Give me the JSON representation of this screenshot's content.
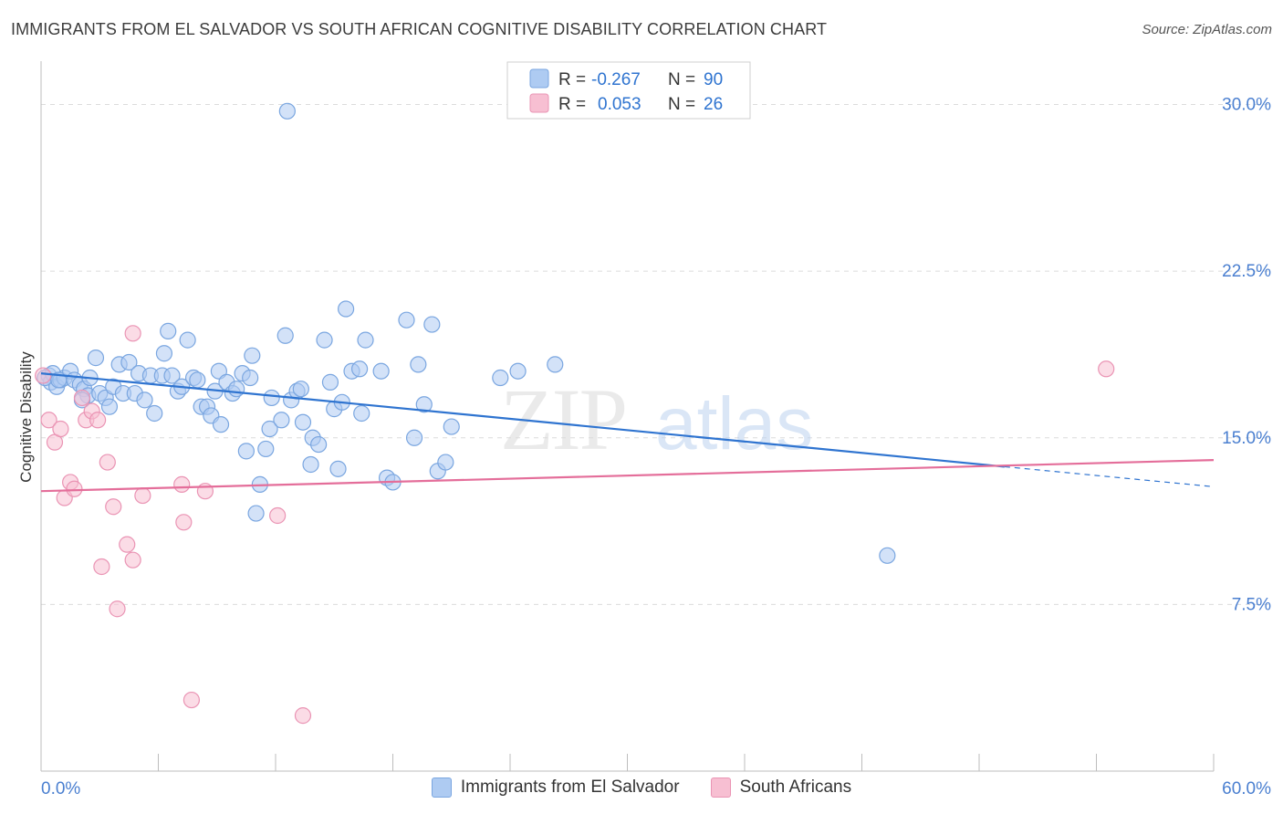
{
  "title": "IMMIGRANTS FROM EL SALVADOR VS SOUTH AFRICAN COGNITIVE DISABILITY CORRELATION CHART",
  "source": "Source: ZipAtlas.com",
  "watermark": {
    "part1": "ZIP",
    "part2": "atlas"
  },
  "colors": {
    "blue_fill": "#aecbf2",
    "blue_stroke": "#7aa6e0",
    "blue_line": "#2f74d0",
    "pink_fill": "#f7bfd2",
    "pink_stroke": "#ea94b4",
    "pink_line": "#e46e9a",
    "tick_label": "#4a7fd0",
    "grid": "#dcdcdc"
  },
  "chart_data": {
    "type": "scatter",
    "xlabel": "",
    "ylabel": "Cognitive Disability",
    "xlim": [
      0,
      60
    ],
    "ylim": [
      0,
      31.5
    ],
    "x_tick_labels": [
      "0.0%",
      "60.0%"
    ],
    "y_ticks": [
      7.5,
      15.0,
      22.5,
      30.0
    ],
    "y_tick_labels": [
      "7.5%",
      "15.0%",
      "22.5%",
      "30.0%"
    ],
    "grid": "horizontal dashed",
    "legend_position": "top-center",
    "stats_legend": [
      {
        "r_label": "R =",
        "r_value": "-0.267",
        "n_label": "N =",
        "n_value": "90"
      },
      {
        "r_label": "R =",
        "r_value": "0.053",
        "n_label": "N =",
        "n_value": "26"
      }
    ],
    "series": [
      {
        "name": "Immigrants from El Salvador",
        "color": "#aecbf2",
        "trend": {
          "x0": 0,
          "y0": 17.9,
          "x1": 49.3,
          "y1": 13.7,
          "dash_to_x": 60,
          "dash_to_y": 12.8
        },
        "points": [
          [
            0.4,
            17.8
          ],
          [
            0.5,
            17.5
          ],
          [
            0.6,
            17.9
          ],
          [
            0.8,
            17.3
          ],
          [
            1.0,
            17.6
          ],
          [
            1.2,
            17.7
          ],
          [
            1.5,
            18.0
          ],
          [
            1.7,
            17.6
          ],
          [
            2.0,
            17.4
          ],
          [
            2.2,
            17.2
          ],
          [
            2.4,
            16.9
          ],
          [
            2.5,
            17.7
          ],
          [
            2.8,
            18.6
          ],
          [
            3.0,
            17.0
          ],
          [
            3.3,
            16.8
          ],
          [
            3.5,
            16.4
          ],
          [
            3.7,
            17.3
          ],
          [
            4.0,
            18.3
          ],
          [
            4.2,
            17.0
          ],
          [
            4.5,
            18.4
          ],
          [
            4.8,
            17.0
          ],
          [
            5.0,
            17.9
          ],
          [
            5.3,
            16.7
          ],
          [
            5.6,
            17.8
          ],
          [
            5.8,
            16.1
          ],
          [
            6.2,
            17.8
          ],
          [
            6.3,
            18.8
          ],
          [
            6.5,
            19.8
          ],
          [
            6.7,
            17.8
          ],
          [
            7.0,
            17.1
          ],
          [
            7.2,
            17.3
          ],
          [
            7.5,
            19.4
          ],
          [
            7.8,
            17.7
          ],
          [
            8.0,
            17.6
          ],
          [
            8.2,
            16.4
          ],
          [
            8.5,
            16.4
          ],
          [
            8.7,
            16.0
          ],
          [
            8.9,
            17.1
          ],
          [
            9.1,
            18.0
          ],
          [
            9.2,
            15.6
          ],
          [
            9.5,
            17.5
          ],
          [
            9.8,
            17.0
          ],
          [
            10.0,
            17.2
          ],
          [
            10.3,
            17.9
          ],
          [
            10.5,
            14.4
          ],
          [
            10.7,
            17.7
          ],
          [
            10.8,
            18.7
          ],
          [
            11.2,
            12.9
          ],
          [
            11.5,
            14.5
          ],
          [
            11.7,
            15.4
          ],
          [
            11.8,
            16.8
          ],
          [
            12.3,
            15.8
          ],
          [
            12.5,
            19.6
          ],
          [
            12.8,
            16.7
          ],
          [
            13.1,
            17.1
          ],
          [
            13.3,
            17.2
          ],
          [
            13.4,
            15.7
          ],
          [
            13.8,
            13.8
          ],
          [
            13.9,
            15.0
          ],
          [
            14.2,
            14.7
          ],
          [
            14.5,
            19.4
          ],
          [
            14.8,
            17.5
          ],
          [
            15.0,
            16.3
          ],
          [
            15.2,
            13.6
          ],
          [
            15.4,
            16.6
          ],
          [
            15.6,
            20.8
          ],
          [
            15.9,
            18.0
          ],
          [
            16.3,
            18.1
          ],
          [
            16.4,
            16.1
          ],
          [
            16.6,
            19.4
          ],
          [
            17.4,
            18.0
          ],
          [
            17.7,
            13.2
          ],
          [
            18.0,
            13.0
          ],
          [
            18.7,
            20.3
          ],
          [
            19.1,
            15.0
          ],
          [
            19.3,
            18.3
          ],
          [
            19.6,
            16.5
          ],
          [
            20.0,
            20.1
          ],
          [
            20.3,
            13.5
          ],
          [
            20.7,
            13.9
          ],
          [
            21.0,
            15.5
          ],
          [
            23.5,
            17.7
          ],
          [
            24.4,
            18.0
          ],
          [
            26.3,
            18.3
          ],
          [
            43.3,
            9.7
          ],
          [
            12.6,
            29.7
          ],
          [
            11.0,
            11.6
          ],
          [
            0.2,
            17.7
          ],
          [
            0.9,
            17.6
          ],
          [
            2.1,
            16.7
          ]
        ]
      },
      {
        "name": "South Africans",
        "color": "#f7bfd2",
        "trend": {
          "x0": 0,
          "y0": 12.6,
          "x1": 60,
          "y1": 14.0
        },
        "points": [
          [
            0.1,
            17.8
          ],
          [
            0.4,
            15.8
          ],
          [
            0.7,
            14.8
          ],
          [
            1.0,
            15.4
          ],
          [
            1.2,
            12.3
          ],
          [
            1.5,
            13.0
          ],
          [
            1.7,
            12.7
          ],
          [
            2.1,
            16.8
          ],
          [
            2.3,
            15.8
          ],
          [
            2.6,
            16.2
          ],
          [
            2.9,
            15.8
          ],
          [
            3.4,
            13.9
          ],
          [
            3.7,
            11.9
          ],
          [
            4.4,
            10.2
          ],
          [
            4.7,
            9.5
          ],
          [
            5.2,
            12.4
          ],
          [
            3.1,
            9.2
          ],
          [
            3.9,
            7.3
          ],
          [
            7.2,
            12.9
          ],
          [
            7.3,
            11.2
          ],
          [
            8.4,
            12.6
          ],
          [
            12.1,
            11.5
          ],
          [
            7.7,
            3.2
          ],
          [
            13.4,
            2.5
          ],
          [
            4.7,
            19.7
          ],
          [
            54.5,
            18.1
          ]
        ]
      }
    ]
  }
}
